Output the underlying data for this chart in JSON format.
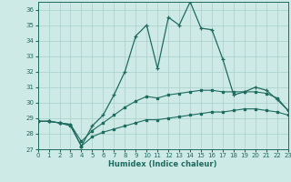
{
  "xlabel": "Humidex (Indice chaleur)",
  "background_color": "#ceeae6",
  "grid_color": "#add4cf",
  "line_color": "#1f6b60",
  "x": [
    0,
    1,
    2,
    3,
    4,
    5,
    6,
    7,
    8,
    9,
    10,
    11,
    12,
    13,
    14,
    15,
    16,
    17,
    18,
    19,
    20,
    21,
    22,
    23
  ],
  "y_main": [
    28.8,
    28.8,
    28.7,
    28.6,
    27.2,
    28.5,
    29.2,
    30.5,
    32.0,
    34.3,
    35.0,
    32.2,
    35.5,
    35.0,
    36.5,
    34.8,
    34.7,
    32.8,
    30.5,
    30.7,
    31.0,
    30.8,
    30.2,
    29.5
  ],
  "y_smooth_upper": [
    28.8,
    28.8,
    28.7,
    28.6,
    27.5,
    28.2,
    28.7,
    29.2,
    29.7,
    30.1,
    30.4,
    30.3,
    30.5,
    30.6,
    30.7,
    30.8,
    30.8,
    30.7,
    30.7,
    30.7,
    30.7,
    30.6,
    30.3,
    29.5
  ],
  "y_smooth_lower": [
    28.8,
    28.8,
    28.7,
    28.5,
    27.2,
    27.8,
    28.1,
    28.3,
    28.5,
    28.7,
    28.9,
    28.9,
    29.0,
    29.1,
    29.2,
    29.3,
    29.4,
    29.4,
    29.5,
    29.6,
    29.6,
    29.5,
    29.4,
    29.2
  ],
  "ylim": [
    27,
    36.5
  ],
  "xlim": [
    0,
    23
  ],
  "yticks": [
    27,
    28,
    29,
    30,
    31,
    32,
    33,
    34,
    35,
    36
  ],
  "xticks": [
    0,
    1,
    2,
    3,
    4,
    5,
    6,
    7,
    8,
    9,
    10,
    11,
    12,
    13,
    14,
    15,
    16,
    17,
    18,
    19,
    20,
    21,
    22,
    23
  ]
}
